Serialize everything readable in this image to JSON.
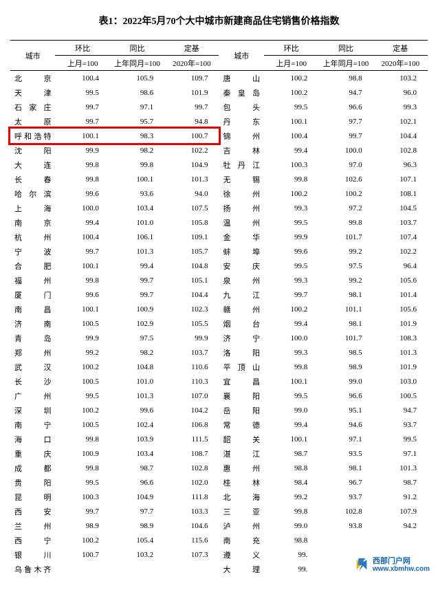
{
  "title": "表1：2022年5月70个大中城市新建商品住宅销售价格指数",
  "headers": {
    "city": "城市",
    "huanbi": "环比",
    "tongbi": "同比",
    "dingji": "定基",
    "sub_month": "上月=100",
    "sub_year": "上年同月=100",
    "sub_base": "2020年=100"
  },
  "rows_left": [
    {
      "city": "北　　京",
      "a": "100.4",
      "b": "105.9",
      "c": "109.7"
    },
    {
      "city": "天　　津",
      "a": "99.5",
      "b": "98.6",
      "c": "101.9"
    },
    {
      "city": "石 家 庄",
      "a": "99.7",
      "b": "97.1",
      "c": "99.7"
    },
    {
      "city": "太　　原",
      "a": "99.7",
      "b": "95.7",
      "c": "94.8"
    },
    {
      "city": "呼和浩特",
      "a": "100.1",
      "b": "98.3",
      "c": "100.7"
    },
    {
      "city": "沈　　阳",
      "a": "99.9",
      "b": "98.2",
      "c": "102.2"
    },
    {
      "city": "大　　连",
      "a": "99.8",
      "b": "99.8",
      "c": "104.9"
    },
    {
      "city": "长　　春",
      "a": "99.8",
      "b": "100.1",
      "c": "101.3"
    },
    {
      "city": "哈 尔 滨",
      "a": "99.6",
      "b": "93.6",
      "c": "94.0"
    },
    {
      "city": "上　　海",
      "a": "100.0",
      "b": "103.4",
      "c": "107.5"
    },
    {
      "city": "南　　京",
      "a": "99.4",
      "b": "101.0",
      "c": "105.8"
    },
    {
      "city": "杭　　州",
      "a": "100.4",
      "b": "106.1",
      "c": "109.1"
    },
    {
      "city": "宁　　波",
      "a": "99.7",
      "b": "101.3",
      "c": "105.7"
    },
    {
      "city": "合　　肥",
      "a": "100.1",
      "b": "99.4",
      "c": "104.8"
    },
    {
      "city": "福　　州",
      "a": "99.8",
      "b": "99.7",
      "c": "105.1"
    },
    {
      "city": "厦　　门",
      "a": "99.6",
      "b": "99.7",
      "c": "104.4"
    },
    {
      "city": "南　　昌",
      "a": "100.1",
      "b": "100.9",
      "c": "102.3"
    },
    {
      "city": "济　　南",
      "a": "100.5",
      "b": "102.9",
      "c": "105.5"
    },
    {
      "city": "青　　岛",
      "a": "99.9",
      "b": "97.5",
      "c": "99.9"
    },
    {
      "city": "郑　　州",
      "a": "99.2",
      "b": "98.2",
      "c": "103.7"
    },
    {
      "city": "武　　汉",
      "a": "100.2",
      "b": "104.8",
      "c": "110.6"
    },
    {
      "city": "长　　沙",
      "a": "100.5",
      "b": "101.0",
      "c": "110.3"
    },
    {
      "city": "广　　州",
      "a": "99.5",
      "b": "101.3",
      "c": "107.0"
    },
    {
      "city": "深　　圳",
      "a": "100.2",
      "b": "99.6",
      "c": "104.2"
    },
    {
      "city": "南　　宁",
      "a": "100.5",
      "b": "102.4",
      "c": "106.8"
    },
    {
      "city": "海　　口",
      "a": "99.8",
      "b": "103.9",
      "c": "111.5"
    },
    {
      "city": "重　　庆",
      "a": "100.9",
      "b": "103.4",
      "c": "108.7"
    },
    {
      "city": "成　　都",
      "a": "99.8",
      "b": "98.7",
      "c": "102.8"
    },
    {
      "city": "贵　　阳",
      "a": "99.5",
      "b": "96.6",
      "c": "102.0"
    },
    {
      "city": "昆　　明",
      "a": "100.3",
      "b": "104.9",
      "c": "111.8"
    },
    {
      "city": "西　　安",
      "a": "99.7",
      "b": "97.7",
      "c": "103.3"
    },
    {
      "city": "兰　　州",
      "a": "98.9",
      "b": "98.9",
      "c": "104.6"
    },
    {
      "city": "西　　宁",
      "a": "100.2",
      "b": "105.4",
      "c": "115.6"
    },
    {
      "city": "银　　川",
      "a": "100.7",
      "b": "103.2",
      "c": "107.3"
    },
    {
      "city": "乌鲁木齐",
      "a": "",
      "b": "",
      "c": ""
    }
  ],
  "rows_right": [
    {
      "city": "唐　　山",
      "a": "100.2",
      "b": "98.8",
      "c": "103.2"
    },
    {
      "city": "秦 皇 岛",
      "a": "100.2",
      "b": "94.7",
      "c": "96.0"
    },
    {
      "city": "包　　头",
      "a": "99.5",
      "b": "96.6",
      "c": "99.3"
    },
    {
      "city": "丹　　东",
      "a": "100.1",
      "b": "97.7",
      "c": "102.1"
    },
    {
      "city": "锦　　州",
      "a": "100.4",
      "b": "99.7",
      "c": "104.4"
    },
    {
      "city": "吉　　林",
      "a": "99.4",
      "b": "100.0",
      "c": "102.8"
    },
    {
      "city": "牡 丹 江",
      "a": "100.3",
      "b": "97.0",
      "c": "96.3"
    },
    {
      "city": "无　　锡",
      "a": "99.8",
      "b": "102.6",
      "c": "107.1"
    },
    {
      "city": "徐　　州",
      "a": "100.2",
      "b": "100.2",
      "c": "108.1"
    },
    {
      "city": "扬　　州",
      "a": "99.3",
      "b": "97.2",
      "c": "104.5"
    },
    {
      "city": "温　　州",
      "a": "99.5",
      "b": "99.8",
      "c": "103.7"
    },
    {
      "city": "金　　华",
      "a": "99.9",
      "b": "101.7",
      "c": "107.4"
    },
    {
      "city": "蚌　　埠",
      "a": "99.6",
      "b": "99.2",
      "c": "102.2"
    },
    {
      "city": "安　　庆",
      "a": "99.5",
      "b": "97.5",
      "c": "96.4"
    },
    {
      "city": "泉　　州",
      "a": "99.3",
      "b": "99.2",
      "c": "105.6"
    },
    {
      "city": "九　　江",
      "a": "99.7",
      "b": "98.1",
      "c": "101.4"
    },
    {
      "city": "赣　　州",
      "a": "100.2",
      "b": "101.1",
      "c": "105.6"
    },
    {
      "city": "烟　　台",
      "a": "99.4",
      "b": "98.1",
      "c": "101.9"
    },
    {
      "city": "济　　宁",
      "a": "100.0",
      "b": "101.7",
      "c": "108.3"
    },
    {
      "city": "洛　　阳",
      "a": "99.3",
      "b": "98.5",
      "c": "101.3"
    },
    {
      "city": "平 顶 山",
      "a": "99.8",
      "b": "98.9",
      "c": "101.9"
    },
    {
      "city": "宜　　昌",
      "a": "100.1",
      "b": "99.0",
      "c": "103.0"
    },
    {
      "city": "襄　　阳",
      "a": "99.5",
      "b": "96.6",
      "c": "100.5"
    },
    {
      "city": "岳　　阳",
      "a": "99.0",
      "b": "95.1",
      "c": "94.7"
    },
    {
      "city": "常　　德",
      "a": "99.4",
      "b": "94.6",
      "c": "93.7"
    },
    {
      "city": "韶　　关",
      "a": "100.1",
      "b": "97.1",
      "c": "99.5"
    },
    {
      "city": "湛　　江",
      "a": "98.7",
      "b": "93.5",
      "c": "97.1"
    },
    {
      "city": "惠　　州",
      "a": "98.8",
      "b": "98.1",
      "c": "101.3"
    },
    {
      "city": "桂　　林",
      "a": "98.4",
      "b": "96.7",
      "c": "98.7"
    },
    {
      "city": "北　　海",
      "a": "99.2",
      "b": "93.7",
      "c": "91.2"
    },
    {
      "city": "三　　亚",
      "a": "99.8",
      "b": "102.8",
      "c": "107.9"
    },
    {
      "city": "泸　　州",
      "a": "99.0",
      "b": "93.8",
      "c": "94.2"
    },
    {
      "city": "南　　充",
      "a": "98.8",
      "b": "",
      "c": ""
    },
    {
      "city": "遵　　义",
      "a": "99.",
      "b": "",
      "c": ""
    },
    {
      "city": "大　　理",
      "a": "99.",
      "b": "",
      "c": ""
    }
  ],
  "highlight_row_index": 4,
  "watermark": {
    "line1": "西部门户网",
    "line2": "www.xbmhw.com",
    "logo_color1": "#f7b500",
    "logo_color2": "#2a7ac0"
  }
}
